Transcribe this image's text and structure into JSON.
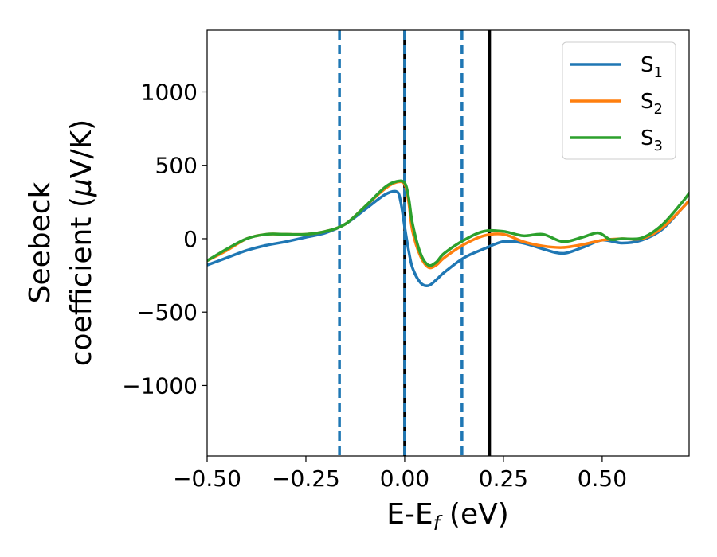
{
  "chart_data": {
    "type": "line",
    "xlabel": "E-E_f (eV)",
    "xlabel_parts": {
      "main": "E-E",
      "sub": "f",
      "unit": " (eV)"
    },
    "ylabel_line1": "Seebeck",
    "ylabel_line2_prefix": "coefficient  (",
    "ylabel_mu": "μ",
    "ylabel_line2_suffix": "V/K)",
    "xlim": [
      -0.5,
      0.72
    ],
    "ylim": [
      -1480,
      1420
    ],
    "x_ticks": [
      -0.5,
      -0.25,
      0.0,
      0.25,
      0.5
    ],
    "x_tick_labels": [
      "−0.50",
      "−0.25",
      "0.00",
      "0.25",
      "0.50"
    ],
    "y_ticks": [
      -1000,
      -500,
      0,
      500,
      1000
    ],
    "y_tick_labels": [
      "−1000",
      "−500",
      "0",
      "500",
      "1000"
    ],
    "grid": false,
    "legend_position": "top-right",
    "series": [
      {
        "name": "S1",
        "label_main": "S",
        "label_sub": "1",
        "color": "#1f77b4",
        "x": [
          -0.5,
          -0.45,
          -0.4,
          -0.35,
          -0.3,
          -0.25,
          -0.2,
          -0.15,
          -0.1,
          -0.05,
          -0.02,
          -0.01,
          0.0,
          0.01,
          0.02,
          0.04,
          0.06,
          0.08,
          0.1,
          0.15,
          0.2,
          0.25,
          0.3,
          0.35,
          0.4,
          0.45,
          0.5,
          0.55,
          0.6,
          0.65,
          0.7,
          0.72
        ],
        "y": [
          -180,
          -130,
          -80,
          -45,
          -20,
          10,
          40,
          100,
          200,
          300,
          320,
          250,
          80,
          -80,
          -200,
          -300,
          -320,
          -280,
          -230,
          -130,
          -70,
          -20,
          -30,
          -70,
          -100,
          -60,
          -10,
          -30,
          -10,
          60,
          200,
          260
        ]
      },
      {
        "name": "S2",
        "label_main": "S",
        "label_sub": "2",
        "color": "#ff7f0e",
        "x": [
          -0.5,
          -0.45,
          -0.4,
          -0.35,
          -0.3,
          -0.25,
          -0.2,
          -0.15,
          -0.1,
          -0.05,
          -0.02,
          0.0,
          0.01,
          0.02,
          0.04,
          0.06,
          0.08,
          0.1,
          0.15,
          0.2,
          0.25,
          0.3,
          0.35,
          0.4,
          0.45,
          0.5,
          0.55,
          0.6,
          0.65,
          0.7,
          0.72
        ],
        "y": [
          -150,
          -80,
          0,
          30,
          30,
          30,
          50,
          100,
          220,
          340,
          385,
          370,
          250,
          50,
          -120,
          -195,
          -180,
          -130,
          -40,
          20,
          30,
          -20,
          -50,
          -60,
          -40,
          -10,
          0,
          0,
          70,
          200,
          260
        ]
      },
      {
        "name": "S3",
        "label_main": "S",
        "label_sub": "3",
        "color": "#2ca02c",
        "x": [
          -0.5,
          -0.45,
          -0.4,
          -0.35,
          -0.3,
          -0.25,
          -0.2,
          -0.15,
          -0.1,
          -0.05,
          -0.02,
          0.0,
          0.01,
          0.02,
          0.04,
          0.06,
          0.08,
          0.1,
          0.15,
          0.2,
          0.25,
          0.3,
          0.35,
          0.4,
          0.45,
          0.49,
          0.52,
          0.55,
          0.6,
          0.65,
          0.7,
          0.72
        ],
        "y": [
          -150,
          -70,
          0,
          30,
          30,
          30,
          50,
          100,
          220,
          350,
          390,
          380,
          280,
          100,
          -100,
          -180,
          -160,
          -100,
          -10,
          50,
          50,
          20,
          30,
          -20,
          10,
          40,
          -5,
          0,
          5,
          90,
          240,
          310
        ]
      }
    ],
    "vertical_lines": [
      {
        "x": -0.165,
        "style": "dashed",
        "color": "#1f77b4"
      },
      {
        "x": 0.0,
        "style": "solid",
        "color": "#000000"
      },
      {
        "x": 0.0,
        "style": "dashed",
        "color": "#1f77b4"
      },
      {
        "x": 0.145,
        "style": "dashed",
        "color": "#1f77b4"
      },
      {
        "x": 0.215,
        "style": "solid",
        "color": "#000000"
      }
    ]
  }
}
